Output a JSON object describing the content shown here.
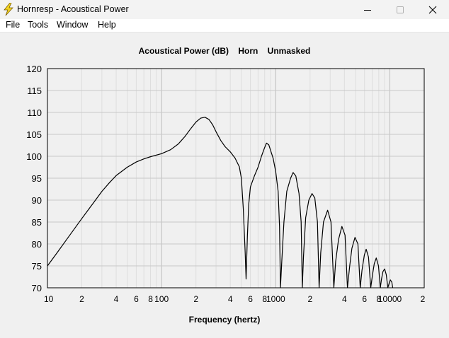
{
  "window": {
    "title": "Hornresp - Acoustical Power",
    "icon": "lightning-bolt-icon",
    "controls": [
      "minimize-icon",
      "maximize-icon",
      "close-icon"
    ]
  },
  "menu": {
    "items": [
      {
        "label": "File"
      },
      {
        "label": "Tools"
      },
      {
        "label": "Window"
      },
      {
        "label": "Help"
      }
    ]
  },
  "chart_data": {
    "type": "line",
    "title": "Acoustical Power (dB)    Horn    Unmasked",
    "xlabel": "Frequency (hertz)",
    "ylabel": "",
    "x_scale": "log",
    "xlim": [
      10,
      20000
    ],
    "ylim": [
      70,
      120
    ],
    "y_ticks": [
      "120",
      "115",
      "110",
      "105",
      "100",
      "95",
      "90",
      "85",
      "80",
      "75",
      "70"
    ],
    "x_tick_labels": [
      {
        "value": 10,
        "label": "10"
      },
      {
        "value": 20,
        "label": "2"
      },
      {
        "value": 40,
        "label": "4"
      },
      {
        "value": 60,
        "label": "6"
      },
      {
        "value": 80,
        "label": "8"
      },
      {
        "value": 100,
        "label": "100"
      },
      {
        "value": 200,
        "label": "2"
      },
      {
        "value": 400,
        "label": "4"
      },
      {
        "value": 600,
        "label": "6"
      },
      {
        "value": 800,
        "label": "8"
      },
      {
        "value": 1000,
        "label": "1000"
      },
      {
        "value": 2000,
        "label": "2"
      },
      {
        "value": 4000,
        "label": "4"
      },
      {
        "value": 6000,
        "label": "6"
      },
      {
        "value": 8000,
        "label": "8"
      },
      {
        "value": 10000,
        "label": "10000"
      },
      {
        "value": 20000,
        "label": "2"
      }
    ],
    "grid": true,
    "series": [
      {
        "color": "#000000",
        "points": [
          [
            10,
            75.0
          ],
          [
            12,
            77.8
          ],
          [
            15,
            81.3
          ],
          [
            20,
            85.8
          ],
          [
            25,
            89.2
          ],
          [
            30,
            92.0
          ],
          [
            35,
            94.0
          ],
          [
            40,
            95.6
          ],
          [
            50,
            97.5
          ],
          [
            60,
            98.7
          ],
          [
            70,
            99.4
          ],
          [
            80,
            99.9
          ],
          [
            100,
            100.6
          ],
          [
            120,
            101.5
          ],
          [
            140,
            102.8
          ],
          [
            160,
            104.5
          ],
          [
            180,
            106.3
          ],
          [
            200,
            107.8
          ],
          [
            220,
            108.7
          ],
          [
            240,
            108.9
          ],
          [
            260,
            108.4
          ],
          [
            280,
            107.2
          ],
          [
            300,
            105.6
          ],
          [
            330,
            103.6
          ],
          [
            360,
            102.2
          ],
          [
            400,
            101.0
          ],
          [
            440,
            99.6
          ],
          [
            480,
            97.6
          ],
          [
            500,
            95.0
          ],
          [
            520,
            88.0
          ],
          [
            540,
            78.0
          ],
          [
            550,
            72.0
          ],
          [
            565,
            82.0
          ],
          [
            580,
            89.0
          ],
          [
            600,
            93.0
          ],
          [
            650,
            95.5
          ],
          [
            700,
            97.5
          ],
          [
            750,
            100.0
          ],
          [
            800,
            102.0
          ],
          [
            830,
            103.0
          ],
          [
            870,
            102.6
          ],
          [
            950,
            99.5
          ],
          [
            1000,
            96.5
          ],
          [
            1050,
            92.0
          ],
          [
            1080,
            84.0
          ],
          [
            1100,
            70.0
          ],
          [
            1130,
            76.0
          ],
          [
            1180,
            85.0
          ],
          [
            1250,
            92.0
          ],
          [
            1350,
            95.0
          ],
          [
            1420,
            96.3
          ],
          [
            1500,
            95.5
          ],
          [
            1600,
            91.5
          ],
          [
            1670,
            85.0
          ],
          [
            1710,
            70.0
          ],
          [
            1750,
            77.0
          ],
          [
            1830,
            86.0
          ],
          [
            1950,
            90.0
          ],
          [
            2080,
            91.5
          ],
          [
            2200,
            90.5
          ],
          [
            2320,
            85.0
          ],
          [
            2400,
            70.0
          ],
          [
            2480,
            78.0
          ],
          [
            2620,
            85.0
          ],
          [
            2850,
            87.7
          ],
          [
            3050,
            85.0
          ],
          [
            3230,
            70.0
          ],
          [
            3350,
            76.0
          ],
          [
            3550,
            81.0
          ],
          [
            3800,
            84.0
          ],
          [
            4050,
            82.0
          ],
          [
            4250,
            70.0
          ],
          [
            4450,
            75.0
          ],
          [
            4650,
            79.0
          ],
          [
            4950,
            81.5
          ],
          [
            5250,
            80.0
          ],
          [
            5500,
            70.0
          ],
          [
            5700,
            74.0
          ],
          [
            5980,
            77.5
          ],
          [
            6200,
            78.8
          ],
          [
            6500,
            77.0
          ],
          [
            6800,
            70.0
          ],
          [
            7050,
            73.0
          ],
          [
            7300,
            75.5
          ],
          [
            7600,
            76.8
          ],
          [
            7950,
            75.0
          ],
          [
            8250,
            70.0
          ],
          [
            8450,
            72.0
          ],
          [
            8700,
            73.7
          ],
          [
            9000,
            74.3
          ],
          [
            9300,
            73.0
          ],
          [
            9600,
            70.0
          ],
          [
            9900,
            71.2
          ],
          [
            10100,
            71.8
          ],
          [
            10400,
            71.3
          ],
          [
            10600,
            70.0
          ]
        ]
      }
    ]
  }
}
